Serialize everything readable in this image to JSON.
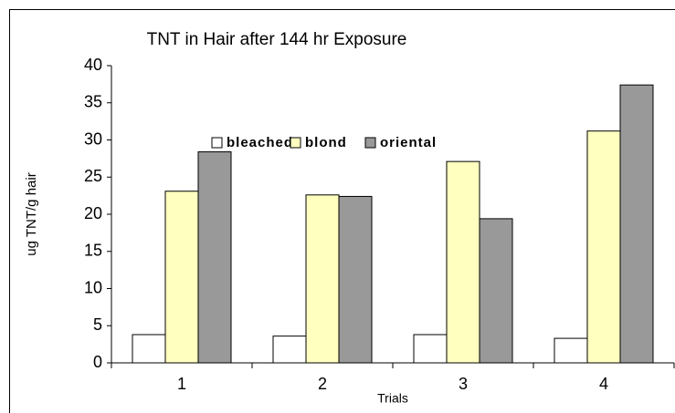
{
  "chart_data": {
    "type": "bar",
    "title": "TNT in Hair after 144 hr Exposure",
    "x_label": "Trials",
    "y_label": "ug TNT/g hair",
    "categories": [
      "1",
      "2",
      "3",
      "4"
    ],
    "series": [
      {
        "name": "bleached",
        "color": "#ffffff",
        "values": [
          3.8,
          3.6,
          3.8,
          3.3
        ]
      },
      {
        "name": "blond",
        "color": "#ffffc0",
        "values": [
          23.1,
          22.6,
          27.1,
          31.2
        ]
      },
      {
        "name": "oriental",
        "color": "#999999",
        "values": [
          28.4,
          22.4,
          19.4,
          37.4
        ]
      }
    ],
    "ylim": [
      0,
      40
    ],
    "yticks": [
      0,
      5,
      10,
      15,
      20,
      25,
      30,
      35,
      40
    ],
    "grid": false
  }
}
